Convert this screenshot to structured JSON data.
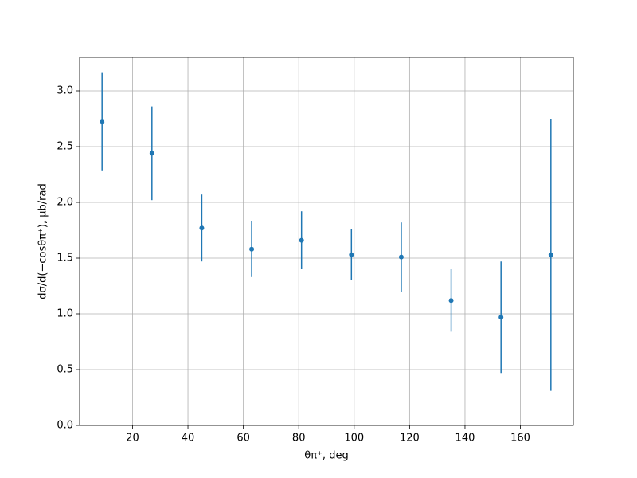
{
  "chart_data": {
    "type": "errorbar",
    "xlabel": "θπ⁺, deg",
    "ylabel": "dσ/d(−cosθπ⁺), μb/rad",
    "x": [
      9,
      27,
      45,
      63,
      81,
      99,
      117,
      135,
      153,
      171
    ],
    "series": [
      {
        "color": "#1f77b4",
        "values": [
          2.72,
          2.44,
          1.77,
          1.58,
          1.66,
          1.53,
          1.51,
          1.12,
          0.97,
          1.53
        ],
        "errors": [
          0.44,
          0.42,
          0.3,
          0.25,
          0.26,
          0.23,
          0.31,
          0.28,
          0.5,
          1.22
        ]
      }
    ],
    "xlim": [
      0.9,
      179.1
    ],
    "ylim": [
      0,
      3.3
    ],
    "xticks": [
      20,
      40,
      60,
      80,
      100,
      120,
      140,
      160
    ],
    "yticks": [
      {
        "value": 0,
        "label": "0.0"
      },
      {
        "value": 0.5,
        "label": "0.5"
      },
      {
        "value": 1,
        "label": "1.0"
      },
      {
        "value": 1.5,
        "label": "1.5"
      },
      {
        "value": 2,
        "label": "2.0"
      },
      {
        "value": 2.5,
        "label": "2.5"
      },
      {
        "value": 3,
        "label": "3.0"
      }
    ],
    "grid": true
  }
}
